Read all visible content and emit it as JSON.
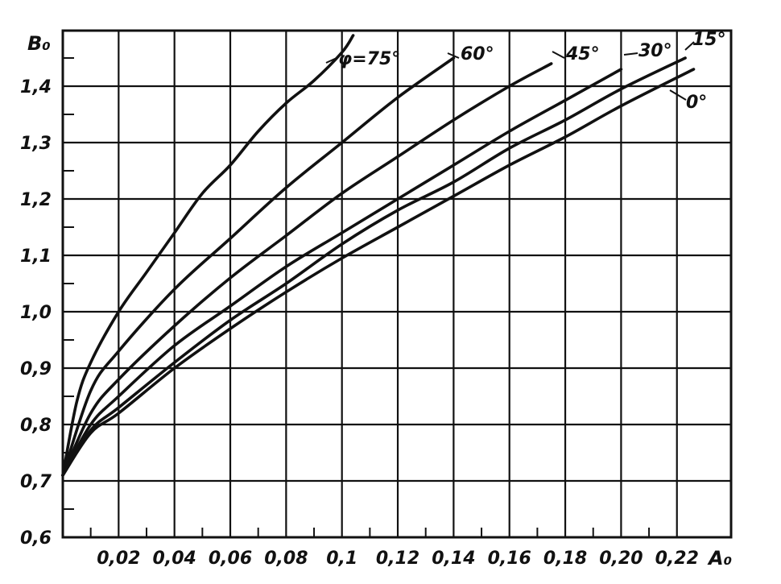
{
  "chart_data": {
    "type": "line",
    "title": "",
    "xlabel": "A₀",
    "ylabel": "B₀",
    "xlim": [
      0,
      0.23
    ],
    "ylim": [
      0.6,
      1.5
    ],
    "grid": true,
    "x_ticks": [
      "0,02",
      "0,04",
      "0,06",
      "0,08",
      "0,1",
      "0,12",
      "0,14",
      "0,16",
      "0,18",
      "0,20",
      "0,22"
    ],
    "x_tick_values": [
      0.02,
      0.04,
      0.06,
      0.08,
      0.1,
      0.12,
      0.14,
      0.16,
      0.18,
      0.2,
      0.22
    ],
    "y_ticks": [
      "0,6",
      "0,7",
      "0,8",
      "0,9",
      "1,0",
      "1,1",
      "1,2",
      "1,3",
      "1,4"
    ],
    "y_tick_values": [
      0.6,
      0.7,
      0.8,
      0.9,
      1.0,
      1.1,
      1.2,
      1.3,
      1.4
    ],
    "series": [
      {
        "name": "φ=75°",
        "x": [
          0,
          0.005,
          0.01,
          0.02,
          0.03,
          0.04,
          0.05,
          0.06,
          0.07,
          0.08,
          0.09,
          0.1,
          0.104
        ],
        "y": [
          0.71,
          0.84,
          0.91,
          1.0,
          1.07,
          1.14,
          1.21,
          1.26,
          1.32,
          1.37,
          1.41,
          1.46,
          1.49
        ]
      },
      {
        "name": "60°",
        "x": [
          0,
          0.01,
          0.02,
          0.04,
          0.06,
          0.08,
          0.1,
          0.12,
          0.14
        ],
        "y": [
          0.71,
          0.86,
          0.93,
          1.04,
          1.13,
          1.22,
          1.3,
          1.38,
          1.45
        ]
      },
      {
        "name": "45°",
        "x": [
          0,
          0.01,
          0.02,
          0.04,
          0.06,
          0.08,
          0.1,
          0.12,
          0.14,
          0.16,
          0.175
        ],
        "y": [
          0.71,
          0.82,
          0.88,
          0.975,
          1.06,
          1.135,
          1.21,
          1.275,
          1.34,
          1.4,
          1.44
        ]
      },
      {
        "name": "30°",
        "x": [
          0,
          0.01,
          0.02,
          0.04,
          0.06,
          0.08,
          0.1,
          0.12,
          0.14,
          0.16,
          0.18,
          0.2
        ],
        "y": [
          0.71,
          0.8,
          0.85,
          0.94,
          1.01,
          1.08,
          1.14,
          1.2,
          1.26,
          1.32,
          1.375,
          1.43
        ]
      },
      {
        "name": "15°",
        "x": [
          0,
          0.01,
          0.02,
          0.04,
          0.06,
          0.08,
          0.1,
          0.12,
          0.14,
          0.16,
          0.18,
          0.2,
          0.223
        ],
        "y": [
          0.71,
          0.79,
          0.83,
          0.91,
          0.985,
          1.05,
          1.12,
          1.18,
          1.23,
          1.29,
          1.34,
          1.395,
          1.45
        ]
      },
      {
        "name": "0°",
        "x": [
          0,
          0.01,
          0.02,
          0.04,
          0.06,
          0.08,
          0.1,
          0.12,
          0.14,
          0.16,
          0.18,
          0.2,
          0.226
        ],
        "y": [
          0.71,
          0.785,
          0.82,
          0.9,
          0.97,
          1.035,
          1.095,
          1.15,
          1.205,
          1.26,
          1.31,
          1.365,
          1.43
        ]
      }
    ]
  }
}
